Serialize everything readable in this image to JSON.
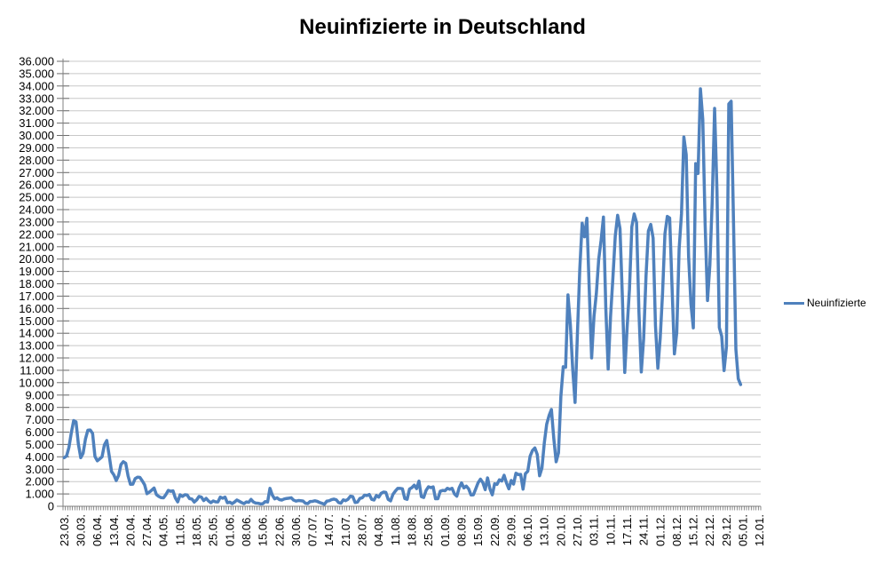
{
  "chart_data": {
    "type": "line",
    "title": "Neuinfizierte in Deutschland",
    "legend": {
      "position": "right",
      "entries": [
        "Neuinfizierte"
      ]
    },
    "ylim": [
      0,
      36000
    ],
    "y_tick_step": 1000,
    "y_label_style": "german-thousands-dot",
    "grid": "horizontal",
    "x_total_slots": 295,
    "x_label_every_slots": 7,
    "x_labels": [
      "23.03.",
      "30.03.",
      "06.04.",
      "13.04.",
      "20.04.",
      "27.04.",
      "04.05.",
      "11.05.",
      "18.05.",
      "25.05.",
      "01.06.",
      "08.06.",
      "15.06.",
      "22.06.",
      "30.06.",
      "07.07.",
      "14.07.",
      "21.07.",
      "28.07.",
      "04.08.",
      "11.08.",
      "18.08.",
      "25.08.",
      "01.09.",
      "08.09.",
      "15.09.",
      "22.09.",
      "29.09.",
      "06.10.",
      "13.10.",
      "20.10.",
      "27.10.",
      "03.11.",
      "10.11.",
      "17.11.",
      "24.11.",
      "01.12.",
      "08.12.",
      "15.12.",
      "22.12.",
      "29.12.",
      "05.01.",
      "12.01."
    ],
    "series": [
      {
        "name": "Neuinfizierte",
        "color": "#4F81BD",
        "values_by_month": {
          "2020-03": [
            3930,
            4062,
            4764,
            5940,
            6933,
            6824,
            5017,
            3932,
            4293
          ],
          "2020-04": [
            5453,
            6156,
            6174,
            5890,
            4031,
            3677,
            3834,
            4003,
            4974,
            5323,
            4133,
            2821,
            2537,
            2082,
            2486,
            3380,
            3609,
            3481,
            2458,
            1775,
            1785,
            2237,
            2352,
            2337,
            2055,
            1737,
            1018,
            1144,
            1304,
            1478
          ],
          "2020-05": [
            945,
            793,
            697,
            685,
            947,
            1284,
            1209,
            1251,
            667,
            357,
            933,
            798,
            933,
            913,
            620,
            583,
            342,
            513,
            797,
            741,
            460,
            638,
            431,
            289,
            432,
            362,
            353,
            741,
            649,
            738,
            286
          ],
          "2020-06": [
            333,
            213,
            342,
            507,
            407,
            301,
            214,
            350,
            318,
            555,
            348,
            258,
            247,
            192,
            210,
            378,
            345,
            1450,
            905,
            601,
            687,
            537,
            503,
            587,
            630,
            656,
            687,
            498,
            418
          ],
          "2020-07": [
            466,
            446,
            422,
            240,
            219,
            390,
            397,
            442,
            395,
            305,
            239,
            159,
            412,
            444,
            534,
            583,
            529,
            305,
            249,
            522,
            454,
            569,
            815,
            781,
            305,
            340,
            633,
            684,
            902,
            870,
            955
          ],
          "2020-08": [
            563,
            509,
            879,
            741,
            1045,
            1147,
            1122,
            555,
            436,
            966,
            1226,
            1445,
            1449,
            1415,
            625,
            561,
            1390,
            1510,
            1707,
            1427,
            2034,
            782,
            711,
            1278,
            1576,
            1507,
            1571,
            610,
            611,
            1218,
            1281
          ],
          "2020-09": [
            1256,
            1453,
            1378,
            1453,
            1000,
            814,
            1499,
            1892,
            1484,
            1629,
            1412,
            920,
            927,
            1407,
            1901,
            2194,
            1916,
            1345,
            2297,
            1411,
            922,
            1821,
            1769,
            2143,
            2046,
            2507,
            1885,
            1411,
            2089,
            1798
          ],
          "2020-10": [
            2673,
            2563,
            2579,
            1382,
            2639,
            2828,
            4058,
            4516,
            4721,
            4200,
            2467,
            3100,
            5132,
            6638,
            7334,
            7830,
            5500,
            3600,
            4325,
            8900,
            11287,
            11242,
            17100,
            14700,
            11100,
            8400,
            14000,
            19200,
            22900,
            21800,
            23300
          ],
          "2020-11": [
            17500,
            12000,
            15352,
            17214,
            19990,
            21506,
            23399,
            16017,
            11100,
            15332,
            18487,
            21866,
            23542,
            22461,
            16947,
            10824,
            14419,
            17561,
            22609,
            23648,
            22964,
            15741,
            10864,
            13554,
            18633,
            22268,
            22806,
            21695,
            14611,
            11169
          ],
          "2020-12": [
            13604,
            17270,
            22046,
            23449,
            23318,
            17767,
            12332,
            14054,
            20815,
            23679,
            29875,
            28438,
            20200,
            16362,
            14432,
            27728,
            26923,
            33777,
            31300,
            22771,
            16643,
            19528,
            24740,
            32195,
            25533,
            14455,
            13755,
            10976,
            12892,
            32552,
            32767
          ],
          "2021-01": [
            22924,
            12690,
            10315,
            9847
          ]
        }
      }
    ],
    "colors": {
      "series_line": "#4F81BD",
      "gridline": "#C8C8C8",
      "axis": "#808080",
      "tick": "#6E6E6E",
      "label_text": "#000000"
    }
  }
}
